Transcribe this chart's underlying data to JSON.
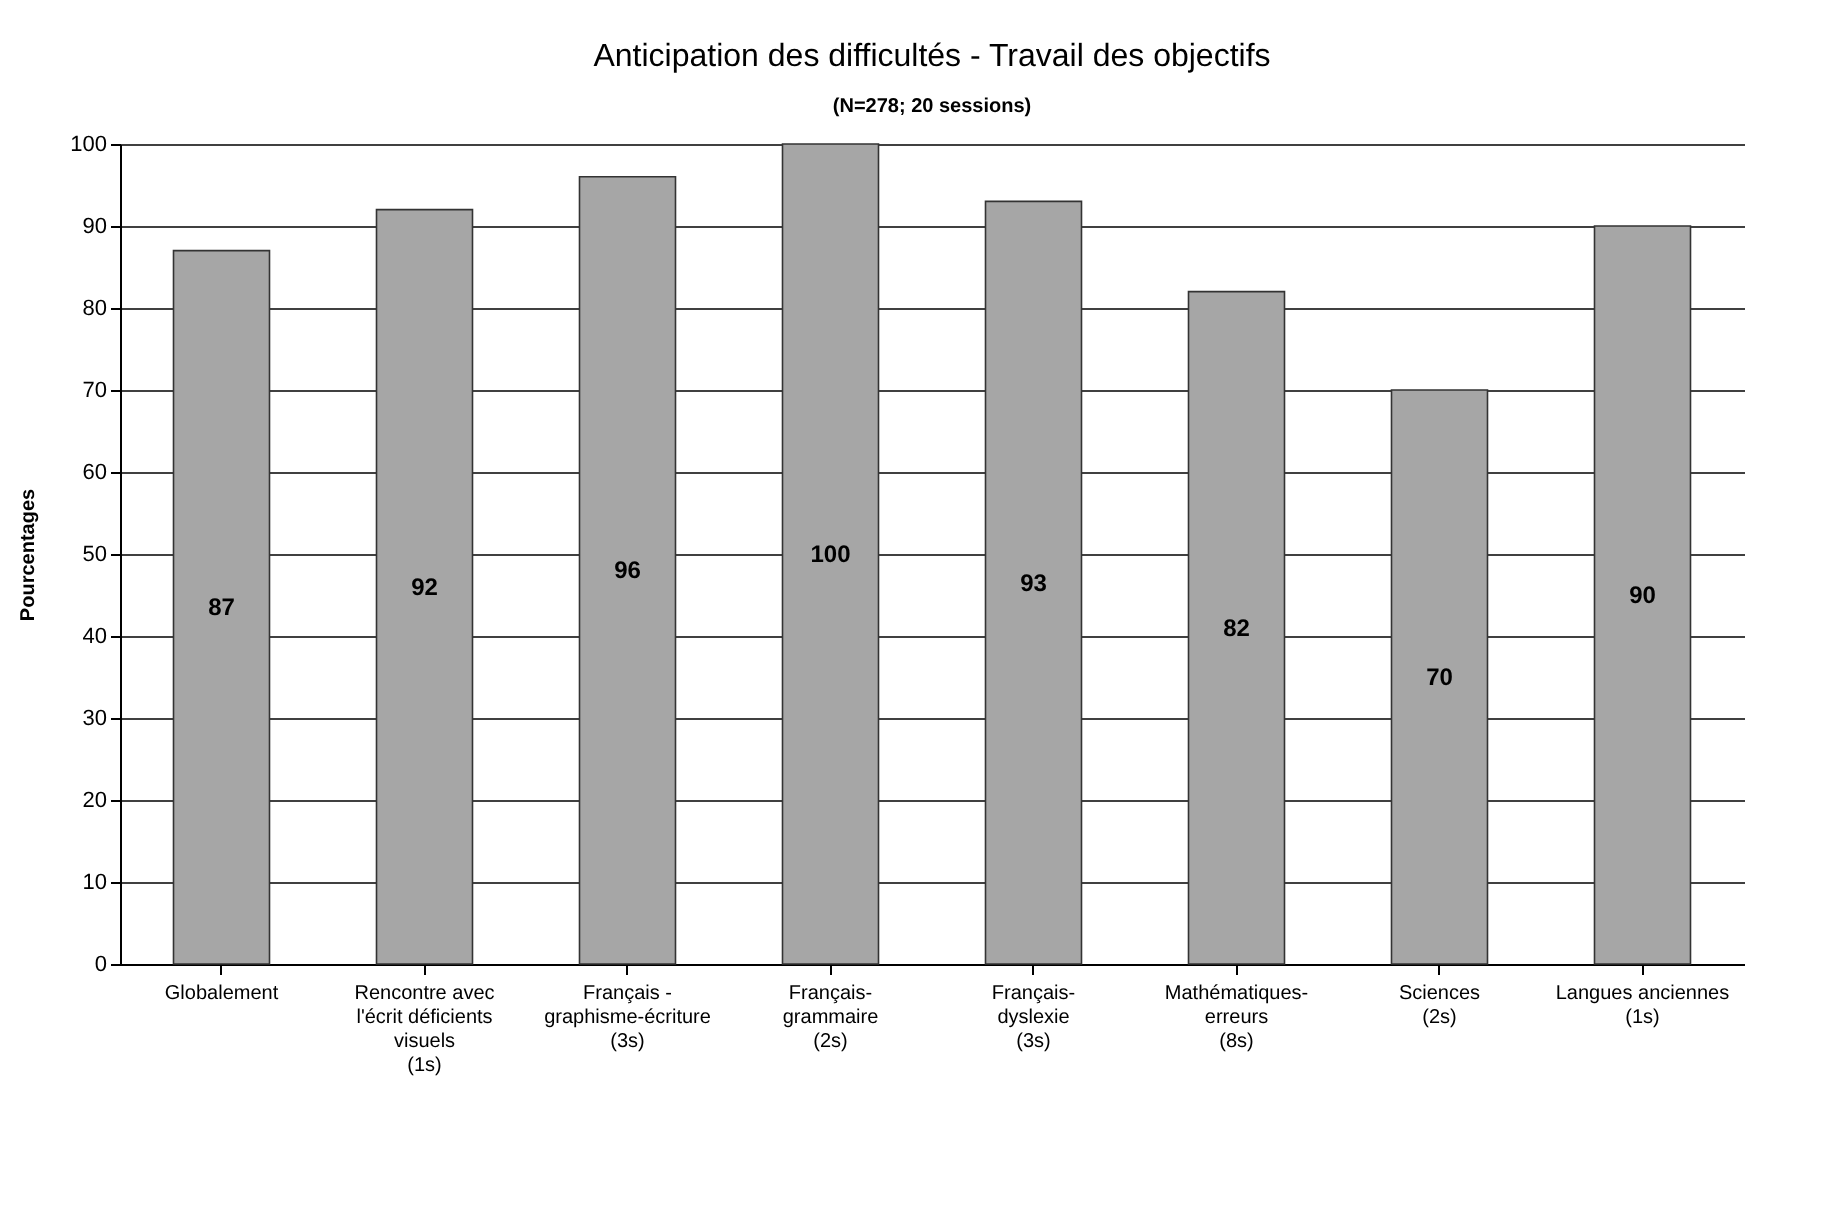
{
  "chart_data": {
    "type": "bar",
    "title": "Anticipation des difficultés - Travail des objectifs",
    "subtitle": "(N=278; 20 sessions)",
    "ylabel": "Pourcentages",
    "categories": [
      "Globalement",
      "Rencontre avec\nl'écrit  déficients\nvisuels\n(1s)",
      "Français -\ngraphisme-écriture\n(3s)",
      "Français-\ngrammaire\n(2s)",
      "Français-\ndyslexie\n(3s)",
      "Mathématiques-\nerreurs\n(8s)",
      "Sciences\n(2s)",
      "Langues anciennes\n(1s)"
    ],
    "values": [
      87,
      92,
      96,
      100,
      93,
      82,
      70,
      90
    ],
    "color": "#a6a6a6",
    "ylim": [
      0,
      100
    ],
    "yticks": [
      0,
      10,
      20,
      30,
      40,
      50,
      60,
      70,
      80,
      90,
      100
    ],
    "grid": "y",
    "data_labels": true
  }
}
